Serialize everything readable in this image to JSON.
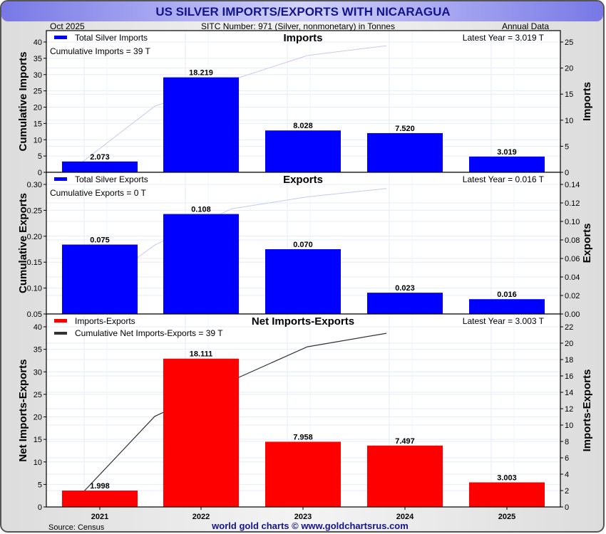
{
  "header": {
    "title": "US SILVER IMPORTS/EXPORTS WITH NICARAGUA",
    "date": "Oct  2025",
    "subtitle": "SITC Number: 971 (Silver, nonmonetary) in Tonnes",
    "frequency": "Annual Data"
  },
  "footer": {
    "source": "Source: Census",
    "credit": "world gold charts © www.goldchartsrus.com"
  },
  "colors": {
    "imports": "#0000ff",
    "exports": "#0000ff",
    "net": "#ff0000",
    "cumulative_light": "#c8c8f0",
    "cumulative_dark": "#333333",
    "title": "#14148c"
  },
  "chart_data": [
    {
      "type": "bar",
      "title": "Imports",
      "categories": [
        "2021",
        "2022",
        "2023",
        "2024",
        "2025"
      ],
      "series": [
        {
          "name": "Total Silver Imports",
          "values": [
            2.073,
            18.219,
            8.028,
            7.52,
            3.019
          ],
          "labels": [
            "2.073",
            "18.219",
            "8.028",
            "7.520",
            "3.019"
          ],
          "axis": "right"
        },
        {
          "name": "Cumulative Imports",
          "values": [
            2.073,
            20.292,
            28.32,
            35.84,
            38.859
          ],
          "axis": "left",
          "type": "line"
        }
      ],
      "annotations": [
        "Cumulative Imports = 39 T",
        "Latest Year = 3.019 T"
      ],
      "ylabel_left": "Cumulative Imports",
      "ylabel_right": "Imports",
      "ylim_left": [
        0,
        40
      ],
      "ylim_right": [
        0,
        25
      ],
      "yticks_left": [
        "0",
        "5",
        "10",
        "15",
        "20",
        "25",
        "30",
        "35",
        "40"
      ],
      "yticks_right": [
        "0",
        "5",
        "10",
        "15",
        "20",
        "25"
      ],
      "legend": "top-left",
      "grid": true
    },
    {
      "type": "bar",
      "title": "Exports",
      "categories": [
        "2021",
        "2022",
        "2023",
        "2024",
        "2025"
      ],
      "series": [
        {
          "name": "Total Silver Exports",
          "values": [
            0.075,
            0.108,
            0.07,
            0.023,
            0.016
          ],
          "labels": [
            "0.075",
            "0.108",
            "0.070",
            "0.023",
            "0.016"
          ],
          "axis": "right"
        },
        {
          "name": "Cumulative Exports",
          "values": [
            0.075,
            0.183,
            0.253,
            0.276,
            0.292
          ],
          "axis": "left",
          "type": "line"
        }
      ],
      "annotations": [
        "Cumulative Exports = 0 T",
        "Latest Year = 0.016 T"
      ],
      "ylabel_left": "Cumulative Exports",
      "ylabel_right": "Exports",
      "ylim_left": [
        0.05,
        0.3
      ],
      "ylim_right": [
        0.0,
        0.14
      ],
      "yticks_left": [
        "0.05",
        "0.10",
        "0.15",
        "0.20",
        "0.25",
        "0.30"
      ],
      "yticks_right": [
        "0.00",
        "0.02",
        "0.04",
        "0.06",
        "0.08",
        "0.10",
        "0.12",
        "0.14"
      ],
      "legend": "top-left",
      "grid": true
    },
    {
      "type": "bar",
      "title": "Net Imports-Exports",
      "categories": [
        "2021",
        "2022",
        "2023",
        "2024",
        "2025"
      ],
      "series": [
        {
          "name": "Imports-Exports",
          "values": [
            1.998,
            18.111,
            7.958,
            7.497,
            3.003
          ],
          "labels": [
            "1.998",
            "18.111",
            "7.958",
            "7.497",
            "3.003"
          ],
          "axis": "right"
        },
        {
          "name": "Cumulative Net Imports-Exports = 39 T",
          "values": [
            1.998,
            20.109,
            28.067,
            35.564,
            38.567
          ],
          "axis": "left",
          "type": "line"
        }
      ],
      "annotations": [
        "Latest Year = 3.003 T"
      ],
      "ylabel_left": "Net Imports-Exports",
      "ylabel_right": "Imports-Exports",
      "ylim_left": [
        0,
        40
      ],
      "ylim_right": [
        0,
        22
      ],
      "yticks_left": [
        "0",
        "5",
        "10",
        "15",
        "20",
        "25",
        "30",
        "35",
        "40"
      ],
      "yticks_right": [
        "0",
        "2",
        "4",
        "6",
        "8",
        "10",
        "12",
        "14",
        "16",
        "18",
        "20",
        "22"
      ],
      "xticks": [
        "2021",
        "2022",
        "2023",
        "2024",
        "2025"
      ],
      "legend": "top-left",
      "grid": true
    }
  ]
}
